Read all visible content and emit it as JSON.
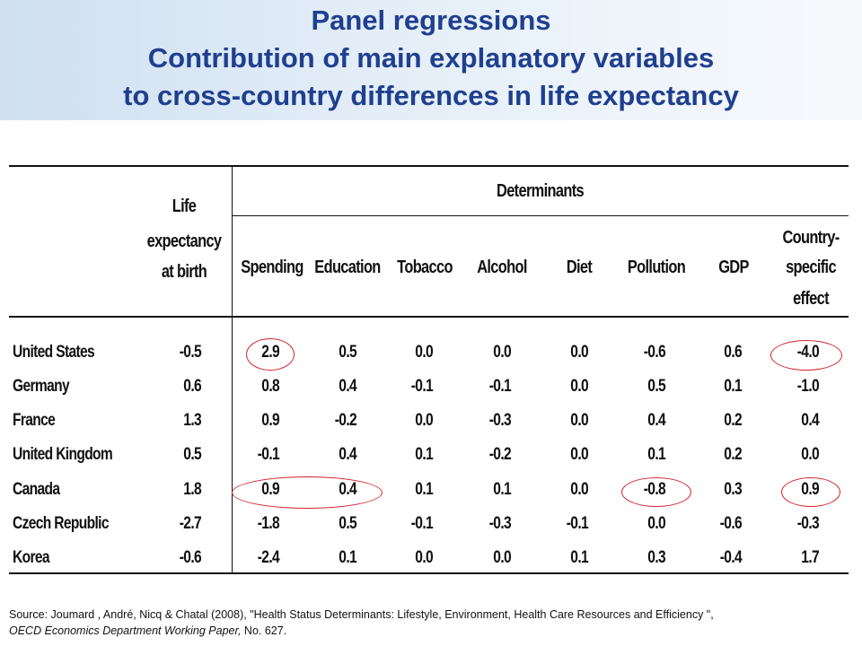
{
  "title": {
    "line1": "Panel regressions",
    "line2": "Contribution of main explanatory variables",
    "line3": "to cross-country differences in life expectancy"
  },
  "table": {
    "group_header": "Determinants",
    "first_col_header": [
      "Life",
      "expectancy",
      "at birth"
    ],
    "columns": [
      "Spending",
      "Education",
      "Tobacco",
      "Alcohol",
      "Diet",
      "Pollution",
      "GDP"
    ],
    "last_col_header": [
      "Country-",
      "specific",
      "effect"
    ],
    "rows": [
      {
        "country": "United States",
        "values": [
          "-0.5",
          "2.9",
          "0.5",
          "0.0",
          "0.0",
          "0.0",
          "-0.6",
          "0.6",
          "-4.0"
        ]
      },
      {
        "country": "Germany",
        "values": [
          "0.6",
          "0.8",
          "0.4",
          "-0.1",
          "-0.1",
          "0.0",
          "0.5",
          "0.1",
          "-1.0"
        ]
      },
      {
        "country": "France",
        "values": [
          "1.3",
          "0.9",
          "-0.2",
          "0.0",
          "-0.3",
          "0.0",
          "0.4",
          "0.2",
          "0.4"
        ]
      },
      {
        "country": "United Kingdom",
        "values": [
          "0.5",
          "-0.1",
          "0.4",
          "0.1",
          "-0.2",
          "0.0",
          "0.1",
          "0.2",
          "0.0"
        ]
      },
      {
        "country": "Canada",
        "values": [
          "1.8",
          "0.9",
          "0.4",
          "0.1",
          "0.1",
          "0.0",
          "-0.8",
          "0.3",
          "0.9"
        ]
      },
      {
        "country": "Czech Republic",
        "values": [
          "-2.7",
          "-1.8",
          "0.5",
          "-0.1",
          "-0.3",
          "-0.1",
          "0.0",
          "-0.6",
          "-0.3"
        ]
      },
      {
        "country": "Korea",
        "values": [
          "-0.6",
          "-2.4",
          "0.1",
          "0.0",
          "0.0",
          "0.1",
          "0.3",
          "-0.4",
          "1.7"
        ]
      }
    ]
  },
  "source": {
    "prefix": "Source: Joumard , André, Nicq & Chatal (2008), \"Health Status  Determinants: Lifestyle, Environment, Health Care Resources and Efficiency \",",
    "publication": "OECD Economics Department Working Paper,",
    "suffix": " No. 627."
  },
  "colors": {
    "title": "#1f3f8f",
    "highlight_oval": "#d0232b"
  }
}
